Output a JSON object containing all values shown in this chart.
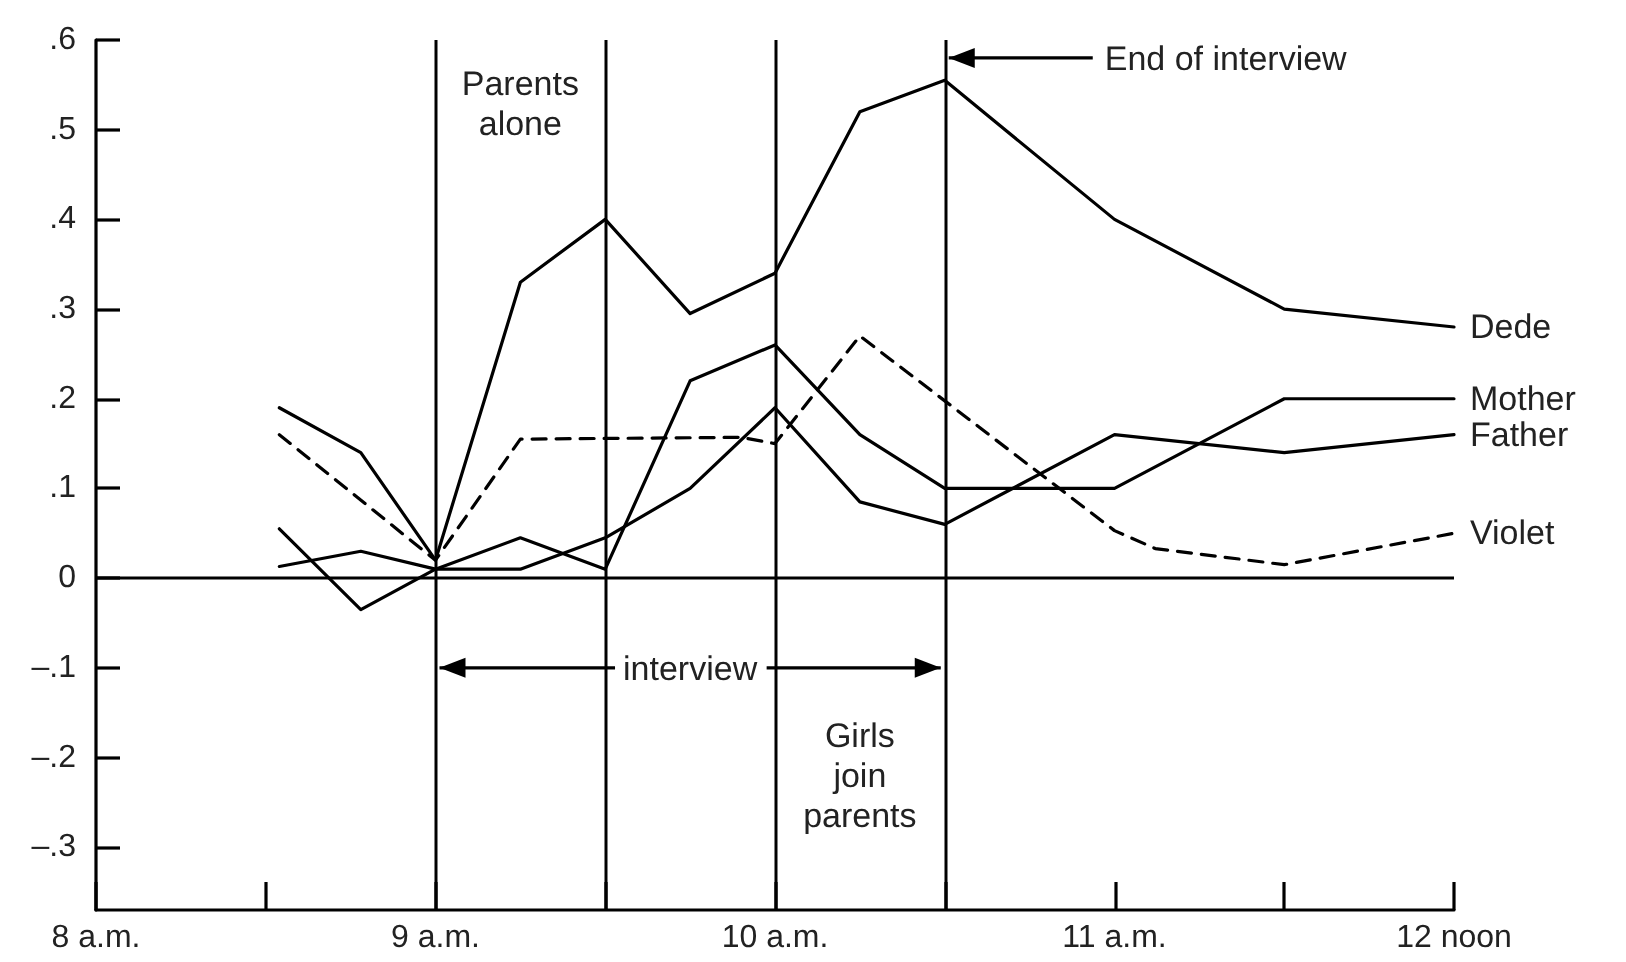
{
  "chart_data": {
    "type": "line",
    "xlim": [
      8,
      12
    ],
    "xticks": [
      {
        "value": 8,
        "label": "8 a.m."
      },
      {
        "value": 8.5,
        "label": null
      },
      {
        "value": 9,
        "label": "9 a.m."
      },
      {
        "value": 9.5,
        "label": null
      },
      {
        "value": 10,
        "label": "10 a.m."
      },
      {
        "value": 10.5,
        "label": null
      },
      {
        "value": 11,
        "label": "11 a.m."
      },
      {
        "value": 11.5,
        "label": null
      },
      {
        "value": 12,
        "label": "12 noon"
      }
    ],
    "ylim": [
      -0.37,
      0.6
    ],
    "yticks": [
      {
        "value": -0.3,
        "label": "–.3"
      },
      {
        "value": -0.2,
        "label": "–.2"
      },
      {
        "value": -0.1,
        "label": "–.1"
      },
      0,
      {
        "value": 0.1,
        "label": ".1"
      },
      {
        "value": 0.2,
        "label": ".2"
      },
      {
        "value": 0.3,
        "label": ".3"
      },
      {
        "value": 0.4,
        "label": ".4"
      },
      {
        "value": 0.5,
        "label": ".5"
      },
      {
        "value": 0.6,
        "label": ".6"
      }
    ],
    "series": [
      {
        "name": "Dede",
        "color": "#000000",
        "x": [
          8.54,
          8.78,
          9,
          9.25,
          9.5,
          9.75,
          10,
          10.25,
          10.5,
          11,
          11.5,
          12
        ],
        "values": [
          0.19,
          0.14,
          0.02,
          0.33,
          0.4,
          0.295,
          0.34,
          0.52,
          0.555,
          0.4,
          0.3,
          0.28
        ]
      },
      {
        "name": "Mother",
        "color": "#000000",
        "x": [
          8.54,
          8.78,
          9,
          9.25,
          9.5,
          9.75,
          10,
          10.25,
          10.5,
          11,
          11.5,
          12
        ],
        "values": [
          0.055,
          -0.035,
          0.01,
          0.045,
          0.01,
          0.22,
          0.26,
          0.16,
          0.1,
          0.1,
          0.2,
          0.2
        ]
      },
      {
        "name": "Father",
        "color": "#000000",
        "x": [
          8.54,
          8.78,
          9,
          9.25,
          9.5,
          9.75,
          10,
          10.25,
          10.5,
          11,
          11.5,
          12
        ],
        "values": [
          0.013,
          0.03,
          0.01,
          0.01,
          0.045,
          0.1,
          0.19,
          0.085,
          0.06,
          0.16,
          0.14,
          0.16
        ]
      },
      {
        "name": "Violet",
        "color": "#000000",
        "line_style": "dashed",
        "x": [
          8.54,
          9,
          9.25,
          9.9,
          10,
          10.25,
          11,
          11.12,
          11.5,
          12
        ],
        "values": [
          0.16,
          0.02,
          0.155,
          0.157,
          0.15,
          0.27,
          0.053,
          0.033,
          0.015,
          0.05
        ]
      }
    ],
    "line_style": "solid",
    "marker": "none",
    "grid": false,
    "legend": false,
    "ref_lines": [
      {
        "axis": "y",
        "value": 0
      },
      {
        "axis": "x",
        "value": 9
      },
      {
        "axis": "x",
        "value": 9.5
      },
      {
        "axis": "x",
        "value": 10
      },
      {
        "axis": "x",
        "value": 10.5
      }
    ],
    "annotations": [
      "Parents\nalone",
      "End of interview",
      {
        "text": "interview",
        "x": 10.5,
        "y": -0.1
      },
      "Girls\njoin\nparents"
    ]
  }
}
